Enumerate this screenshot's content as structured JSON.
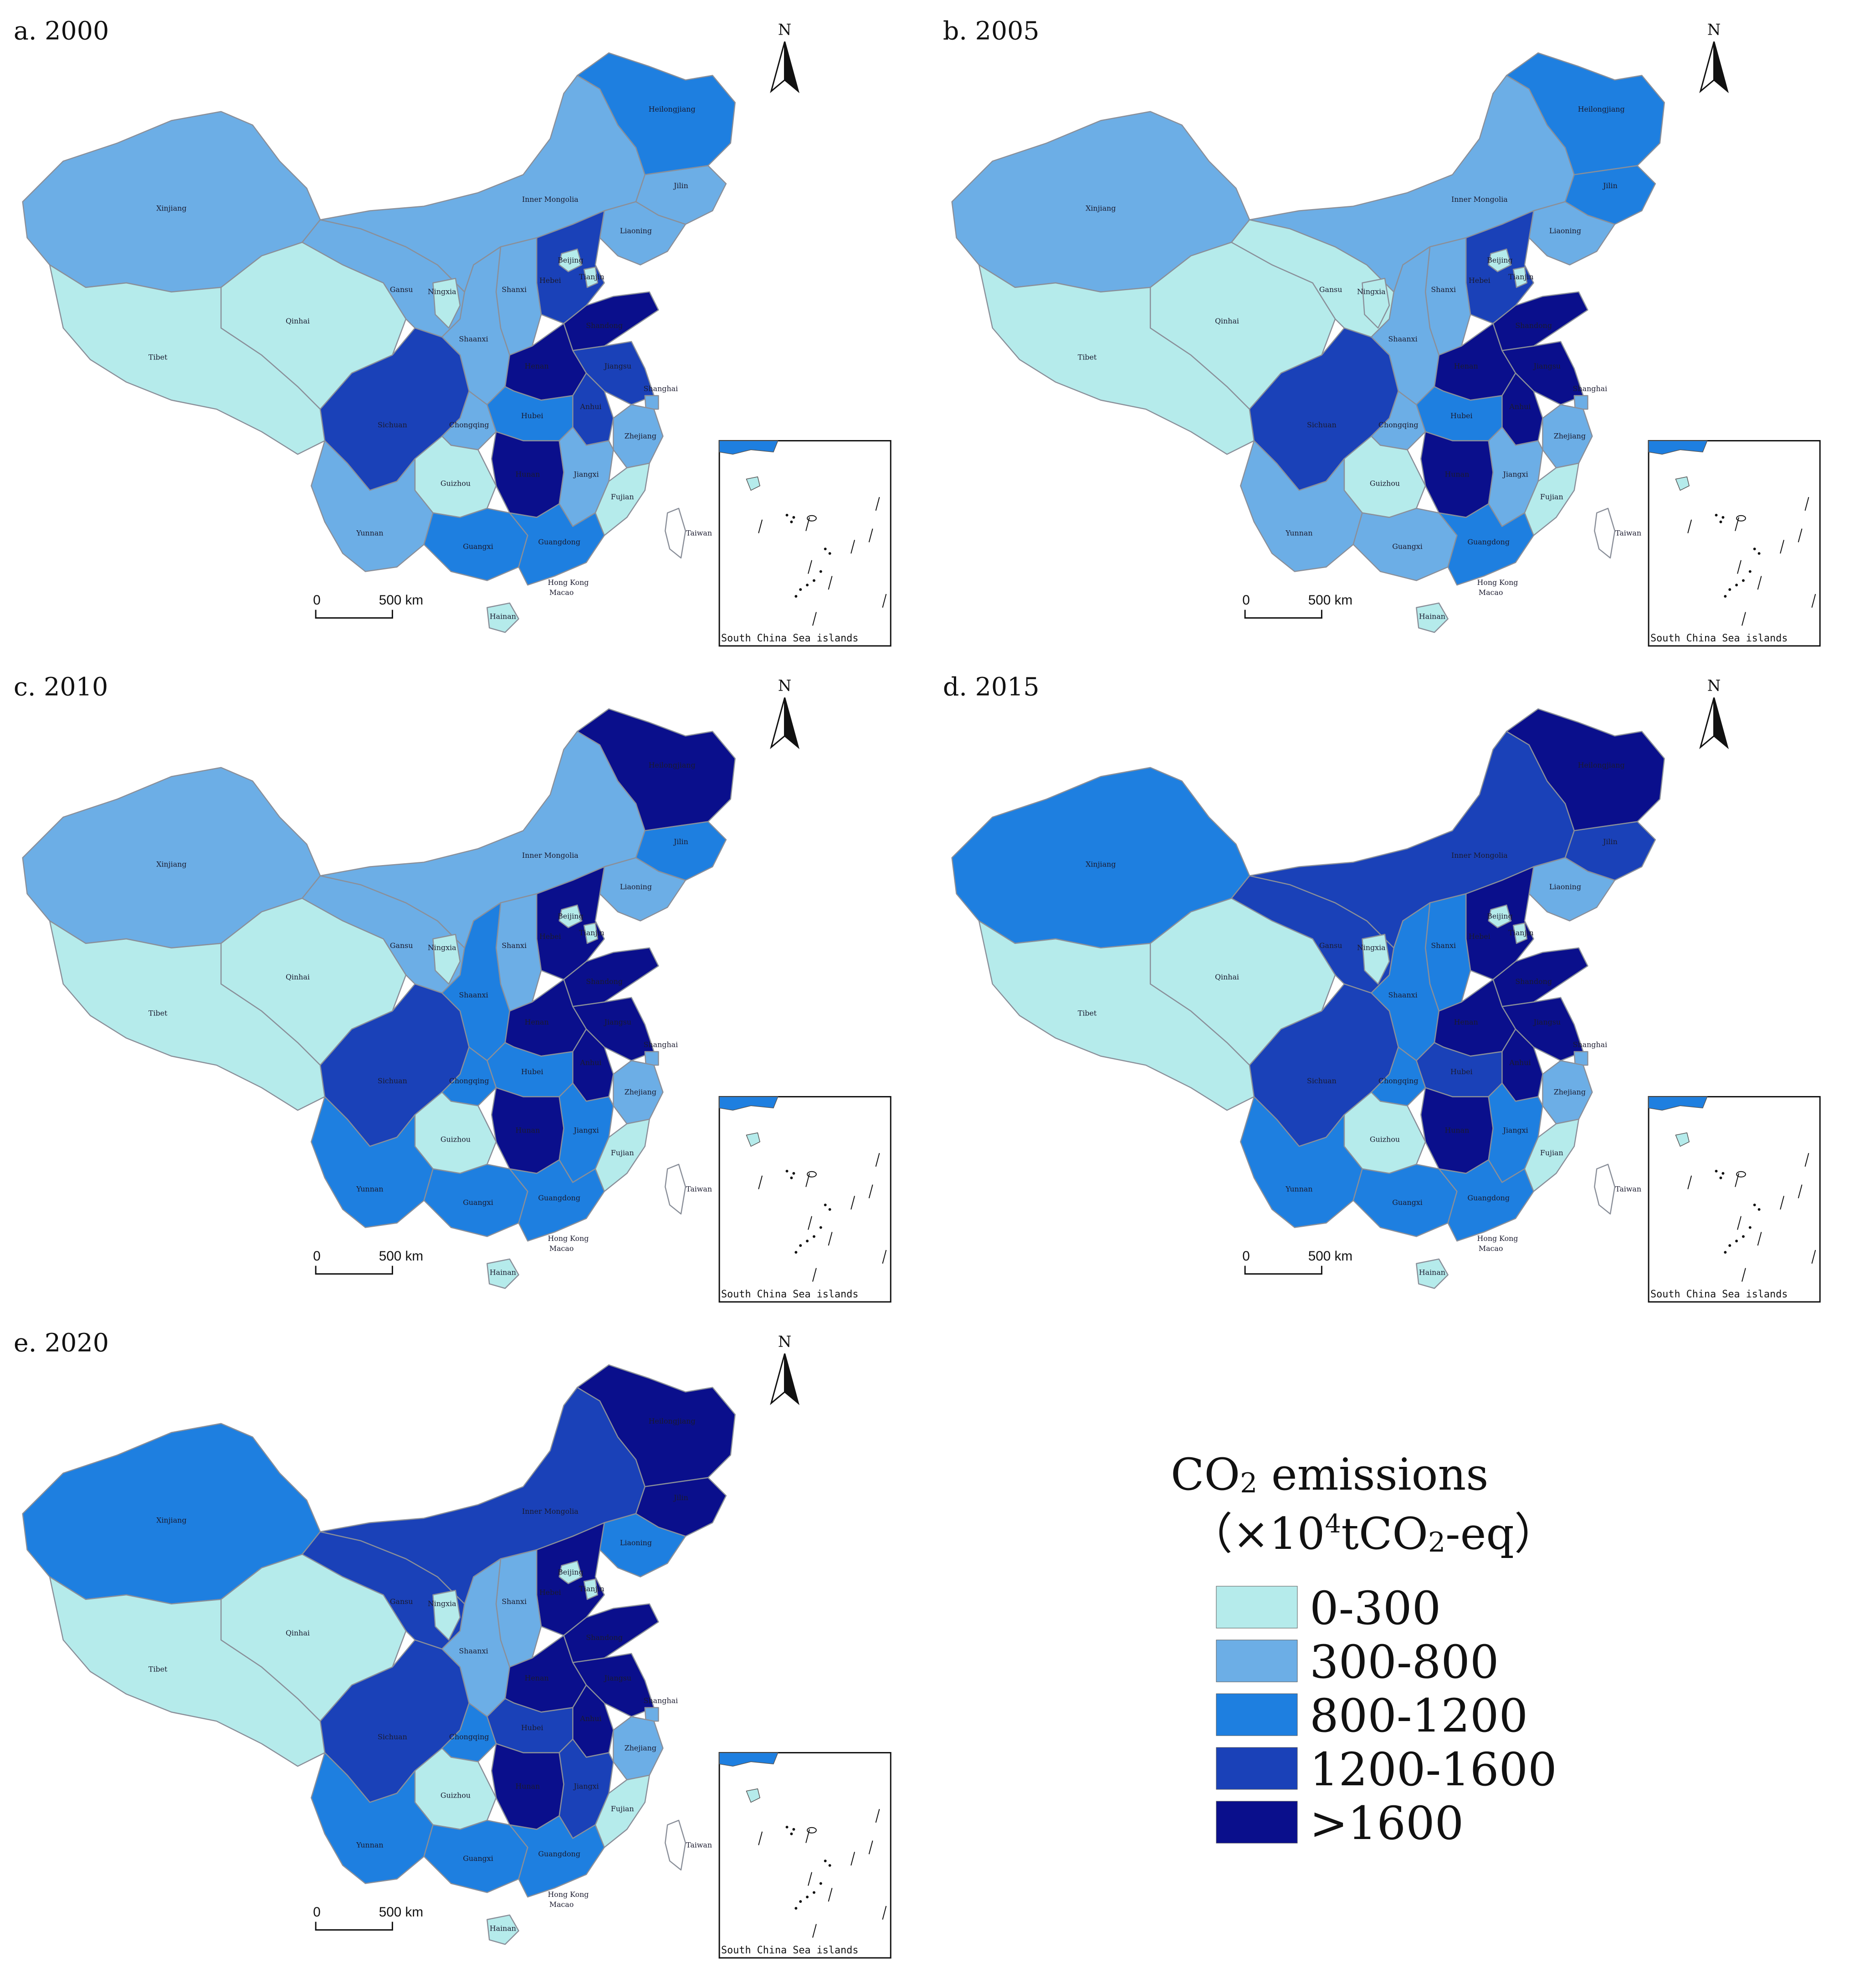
{
  "panels": [
    {
      "title": "a. 2000",
      "region_values": {
        "xinjiang": "300-800",
        "tibet": "0-300",
        "qinghai": "0-300",
        "inner_mongolia": "300-800",
        "heilongjiang": "800-1200",
        "jilin": "300-800",
        "liaoning": "300-800",
        "gansu": "300-800",
        "ningxia": "0-300",
        "shaanxi": "300-800",
        "shanxi": "300-800",
        "hebei": "1200-1600",
        "beijing": "0-300",
        "tianjin": "0-300",
        "shandong": ">1600",
        "henan": ">1600",
        "jiangsu": "1200-1600",
        "anhui": "1200-1600",
        "shanghai": "300-800",
        "zhejiang": "300-800",
        "hubei": "800-1200",
        "sichuan": "1200-1600",
        "chongqing": "300-800",
        "hunan": ">1600",
        "jiangxi": "300-800",
        "fujian": "0-300",
        "guizhou": "0-300",
        "yunnan": "300-800",
        "guangxi": "800-1200",
        "guangdong": "800-1200",
        "hainan": "0-300",
        "taiwan": "none"
      }
    },
    {
      "title": "b. 2005",
      "region_values": {
        "xinjiang": "300-800",
        "tibet": "0-300",
        "qinghai": "0-300",
        "inner_mongolia": "300-800",
        "heilongjiang": "800-1200",
        "jilin": "800-1200",
        "liaoning": "300-800",
        "gansu": "0-300",
        "ningxia": "0-300",
        "shaanxi": "300-800",
        "shanxi": "300-800",
        "hebei": "1200-1600",
        "beijing": "0-300",
        "tianjin": "0-300",
        "shandong": ">1600",
        "henan": ">1600",
        "jiangsu": ">1600",
        "anhui": ">1600",
        "shanghai": "300-800",
        "zhejiang": "300-800",
        "hubei": "800-1200",
        "sichuan": "1200-1600",
        "chongqing": "300-800",
        "hunan": ">1600",
        "jiangxi": "300-800",
        "fujian": "0-300",
        "guizhou": "0-300",
        "yunnan": "300-800",
        "guangxi": "300-800",
        "guangdong": "800-1200",
        "hainan": "0-300",
        "taiwan": "none"
      }
    },
    {
      "title": "c. 2010",
      "region_values": {
        "xinjiang": "300-800",
        "tibet": "0-300",
        "qinghai": "0-300",
        "inner_mongolia": "300-800",
        "heilongjiang": ">1600",
        "jilin": "800-1200",
        "liaoning": "300-800",
        "gansu": "300-800",
        "ningxia": "0-300",
        "shaanxi": "800-1200",
        "shanxi": "300-800",
        "hebei": ">1600",
        "beijing": "0-300",
        "tianjin": "0-300",
        "shandong": ">1600",
        "henan": ">1600",
        "jiangsu": ">1600",
        "anhui": ">1600",
        "shanghai": "300-800",
        "zhejiang": "300-800",
        "hubei": "800-1200",
        "sichuan": "1200-1600",
        "chongqing": "800-1200",
        "hunan": ">1600",
        "jiangxi": "800-1200",
        "fujian": "0-300",
        "guizhou": "0-300",
        "yunnan": "800-1200",
        "guangxi": "800-1200",
        "guangdong": "800-1200",
        "hainan": "0-300",
        "taiwan": "none"
      }
    },
    {
      "title": "d. 2015",
      "region_values": {
        "xinjiang": "800-1200",
        "tibet": "0-300",
        "qinghai": "0-300",
        "inner_mongolia": "1200-1600",
        "heilongjiang": ">1600",
        "jilin": "1200-1600",
        "liaoning": "300-800",
        "gansu": "1200-1600",
        "ningxia": "0-300",
        "shaanxi": "800-1200",
        "shanxi": "800-1200",
        "hebei": ">1600",
        "beijing": "0-300",
        "tianjin": "0-300",
        "shandong": ">1600",
        "henan": ">1600",
        "jiangsu": ">1600",
        "anhui": ">1600",
        "shanghai": "300-800",
        "zhejiang": "300-800",
        "hubei": "1200-1600",
        "sichuan": "1200-1600",
        "chongqing": "800-1200",
        "hunan": ">1600",
        "jiangxi": "800-1200",
        "fujian": "0-300",
        "guizhou": "0-300",
        "yunnan": "800-1200",
        "guangxi": "800-1200",
        "guangdong": "800-1200",
        "hainan": "0-300",
        "taiwan": "none"
      }
    },
    {
      "title": "e. 2020",
      "region_values": {
        "xinjiang": "800-1200",
        "tibet": "0-300",
        "qinghai": "0-300",
        "inner_mongolia": "1200-1600",
        "heilongjiang": ">1600",
        "jilin": ">1600",
        "liaoning": "800-1200",
        "gansu": "1200-1600",
        "ningxia": "0-300",
        "shaanxi": "300-800",
        "shanxi": "300-800",
        "hebei": ">1600",
        "beijing": "0-300",
        "tianjin": "0-300",
        "shandong": ">1600",
        "henan": ">1600",
        "jiangsu": ">1600",
        "anhui": ">1600",
        "shanghai": "300-800",
        "zhejiang": "300-800",
        "hubei": "1200-1600",
        "sichuan": "1200-1600",
        "chongqing": "800-1200",
        "hunan": ">1600",
        "jiangxi": "1200-1600",
        "fujian": "0-300",
        "guizhou": "0-300",
        "yunnan": "800-1200",
        "guangxi": "800-1200",
        "guangdong": "800-1200",
        "hainan": "0-300",
        "taiwan": "none"
      }
    }
  ],
  "region_names": {
    "xinjiang": "Xinjiang",
    "tibet": "Tibet",
    "qinghai": "Qinhai",
    "inner_mongolia": "Inner Mongolia",
    "heilongjiang": "Heilongjiang",
    "jilin": "Jilin",
    "liaoning": "Liaoning",
    "gansu": "Gansu",
    "ningxia": "Ningxia",
    "shaanxi": "Shaanxi",
    "shanxi": "Shanxi",
    "hebei": "Hebei",
    "beijing": "Beijing",
    "tianjin": "Tianjin",
    "shandong": "Shandong",
    "henan": "Henan",
    "jiangsu": "Jiangsu",
    "anhui": "Anhui",
    "shanghai": "Shanghai",
    "zhejiang": "Zhejiang",
    "hubei": "Hubei",
    "sichuan": "Sichuan",
    "chongqing": "Chongqing",
    "hunan": "Hunan",
    "jiangxi": "Jiangxi",
    "fujian": "Fujian",
    "guizhou": "Guizhou",
    "yunnan": "Yunnan",
    "guangxi": "Guangxi",
    "guangdong": "Guangdong",
    "hainan": "Hainan",
    "taiwan": "Taiwan",
    "hong_kong": "Hong Kong",
    "macao": "Macao"
  },
  "north_label": "N",
  "scale": {
    "zero": "0",
    "dist": "500 km"
  },
  "inset": {
    "caption": "South China Sea islands"
  },
  "legend": {
    "title_main": "CO",
    "title_sub": "2",
    "title_rest": " emissions",
    "unit_open": "（×10",
    "unit_sup": "4",
    "unit_mid": "tCO",
    "unit_sub": "2",
    "unit_close": "-eq）",
    "classes": [
      {
        "label": "0-300",
        "color": "#b5ebeb"
      },
      {
        "label": "300-800",
        "color": "#6caee6"
      },
      {
        "label": "800-1200",
        "color": "#1e7fe0"
      },
      {
        "label": "1200-1600",
        "color": "#1a41b8"
      },
      {
        "label": ">1600",
        "color": "#0a0f8c"
      }
    ]
  }
}
